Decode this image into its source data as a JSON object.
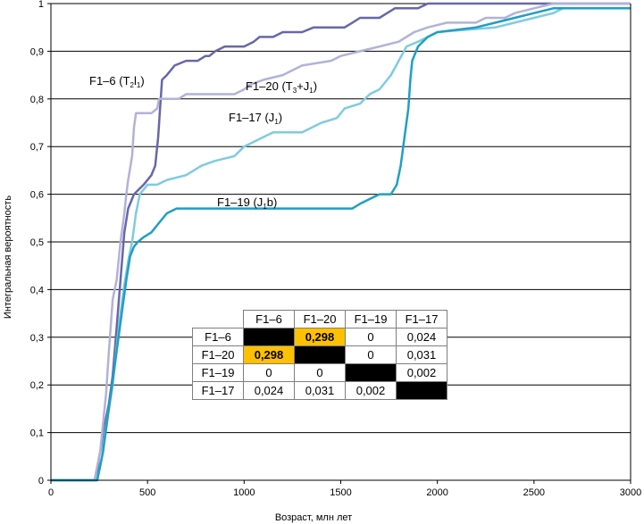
{
  "chart_data": {
    "type": "line",
    "xlabel": "Возраст, млн лет",
    "ylabel": "Интегральная вероятность",
    "xlim": [
      0,
      3000
    ],
    "ylim": [
      0,
      1
    ],
    "x_ticks": [
      "0",
      "500",
      "1000",
      "1500",
      "2000",
      "2500",
      "3000"
    ],
    "y_ticks": [
      "0",
      "0,1",
      "0,2",
      "0,3",
      "0,4",
      "0,5",
      "0,6",
      "0,7",
      "0,8",
      "0,9",
      "1"
    ],
    "grid": "horizontal",
    "series": [
      {
        "name": "F1–6 (T2l1)",
        "label": {
          "main": "F1–6 (T",
          "sub1": "2",
          "mid": "l",
          "sub2": "1",
          "end": ")"
        },
        "color": "#6767aa",
        "points": [
          [
            0,
            0
          ],
          [
            225,
            0
          ],
          [
            240,
            0.02
          ],
          [
            250,
            0.05
          ],
          [
            265,
            0.08
          ],
          [
            280,
            0.12
          ],
          [
            300,
            0.16
          ],
          [
            320,
            0.22
          ],
          [
            340,
            0.32
          ],
          [
            360,
            0.42
          ],
          [
            380,
            0.52
          ],
          [
            400,
            0.57
          ],
          [
            430,
            0.6
          ],
          [
            480,
            0.62
          ],
          [
            520,
            0.64
          ],
          [
            540,
            0.66
          ],
          [
            555,
            0.72
          ],
          [
            565,
            0.78
          ],
          [
            575,
            0.84
          ],
          [
            600,
            0.85
          ],
          [
            640,
            0.87
          ],
          [
            700,
            0.88
          ],
          [
            760,
            0.88
          ],
          [
            800,
            0.89
          ],
          [
            820,
            0.89
          ],
          [
            850,
            0.9
          ],
          [
            900,
            0.91
          ],
          [
            1000,
            0.91
          ],
          [
            1050,
            0.92
          ],
          [
            1080,
            0.93
          ],
          [
            1150,
            0.93
          ],
          [
            1200,
            0.94
          ],
          [
            1300,
            0.94
          ],
          [
            1360,
            0.95
          ],
          [
            1520,
            0.95
          ],
          [
            1560,
            0.96
          ],
          [
            1600,
            0.97
          ],
          [
            1700,
            0.97
          ],
          [
            1740,
            0.98
          ],
          [
            1780,
            0.99
          ],
          [
            1900,
            0.99
          ],
          [
            1950,
            1.0
          ],
          [
            3000,
            1.0
          ]
        ]
      },
      {
        "name": "F1–20 (T3+J1)",
        "label": {
          "main": "F1–20 (T",
          "sub1": "3",
          "mid": "+J",
          "sub2": "1",
          "end": ")"
        },
        "color": "#b2b2d8",
        "points": [
          [
            0,
            0
          ],
          [
            225,
            0
          ],
          [
            240,
            0.03
          ],
          [
            255,
            0.06
          ],
          [
            265,
            0.1
          ],
          [
            285,
            0.18
          ],
          [
            300,
            0.27
          ],
          [
            320,
            0.38
          ],
          [
            340,
            0.42
          ],
          [
            360,
            0.5
          ],
          [
            380,
            0.56
          ],
          [
            390,
            0.6
          ],
          [
            400,
            0.63
          ],
          [
            420,
            0.68
          ],
          [
            430,
            0.74
          ],
          [
            440,
            0.77
          ],
          [
            520,
            0.77
          ],
          [
            550,
            0.78
          ],
          [
            560,
            0.8
          ],
          [
            600,
            0.8
          ],
          [
            660,
            0.8
          ],
          [
            700,
            0.81
          ],
          [
            760,
            0.81
          ],
          [
            800,
            0.81
          ],
          [
            950,
            0.81
          ],
          [
            1000,
            0.82
          ],
          [
            1030,
            0.83
          ],
          [
            1100,
            0.84
          ],
          [
            1200,
            0.85
          ],
          [
            1300,
            0.87
          ],
          [
            1450,
            0.88
          ],
          [
            1500,
            0.89
          ],
          [
            1600,
            0.9
          ],
          [
            1700,
            0.91
          ],
          [
            1800,
            0.92
          ],
          [
            1880,
            0.94
          ],
          [
            1950,
            0.95
          ],
          [
            2050,
            0.96
          ],
          [
            2200,
            0.96
          ],
          [
            2250,
            0.97
          ],
          [
            2350,
            0.97
          ],
          [
            2400,
            0.98
          ],
          [
            2500,
            0.99
          ],
          [
            2600,
            1.0
          ],
          [
            3000,
            1.0
          ]
        ]
      },
      {
        "name": "F1–17 (J1)",
        "label": {
          "main": "F1–17 (J",
          "sub1": "1",
          "mid": "",
          "sub2": "",
          "end": ")"
        },
        "color": "#7fcbe0",
        "points": [
          [
            0,
            0
          ],
          [
            235,
            0
          ],
          [
            250,
            0.02
          ],
          [
            265,
            0.05
          ],
          [
            280,
            0.1
          ],
          [
            300,
            0.15
          ],
          [
            320,
            0.2
          ],
          [
            340,
            0.28
          ],
          [
            360,
            0.35
          ],
          [
            380,
            0.41
          ],
          [
            400,
            0.46
          ],
          [
            420,
            0.5
          ],
          [
            440,
            0.56
          ],
          [
            460,
            0.6
          ],
          [
            500,
            0.62
          ],
          [
            550,
            0.62
          ],
          [
            600,
            0.63
          ],
          [
            700,
            0.64
          ],
          [
            780,
            0.66
          ],
          [
            850,
            0.67
          ],
          [
            950,
            0.68
          ],
          [
            1000,
            0.7
          ],
          [
            1100,
            0.72
          ],
          [
            1150,
            0.73
          ],
          [
            1300,
            0.73
          ],
          [
            1400,
            0.75
          ],
          [
            1480,
            0.76
          ],
          [
            1520,
            0.78
          ],
          [
            1600,
            0.79
          ],
          [
            1650,
            0.81
          ],
          [
            1700,
            0.82
          ],
          [
            1760,
            0.85
          ],
          [
            1800,
            0.88
          ],
          [
            1840,
            0.91
          ],
          [
            1900,
            0.92
          ],
          [
            2000,
            0.94
          ],
          [
            2300,
            0.95
          ],
          [
            2400,
            0.96
          ],
          [
            2500,
            0.97
          ],
          [
            2600,
            0.98
          ],
          [
            2650,
            0.99
          ],
          [
            3000,
            0.99
          ]
        ]
      },
      {
        "name": "F1–19 (J1b)",
        "label": {
          "main": "F1–19 (J",
          "sub1": "1",
          "mid": "b",
          "sub2": "",
          "end": ")"
        },
        "color": "#1f9ec7",
        "points": [
          [
            0,
            0
          ],
          [
            240,
            0
          ],
          [
            250,
            0.02
          ],
          [
            270,
            0.06
          ],
          [
            290,
            0.12
          ],
          [
            310,
            0.18
          ],
          [
            330,
            0.24
          ],
          [
            350,
            0.3
          ],
          [
            370,
            0.36
          ],
          [
            390,
            0.42
          ],
          [
            410,
            0.47
          ],
          [
            430,
            0.49
          ],
          [
            450,
            0.5
          ],
          [
            480,
            0.51
          ],
          [
            520,
            0.52
          ],
          [
            560,
            0.54
          ],
          [
            600,
            0.56
          ],
          [
            650,
            0.57
          ],
          [
            800,
            0.57
          ],
          [
            1200,
            0.57
          ],
          [
            1560,
            0.57
          ],
          [
            1600,
            0.58
          ],
          [
            1650,
            0.59
          ],
          [
            1700,
            0.6
          ],
          [
            1760,
            0.6
          ],
          [
            1790,
            0.62
          ],
          [
            1810,
            0.66
          ],
          [
            1830,
            0.72
          ],
          [
            1850,
            0.78
          ],
          [
            1860,
            0.84
          ],
          [
            1870,
            0.88
          ],
          [
            1900,
            0.91
          ],
          [
            1950,
            0.93
          ],
          [
            2000,
            0.94
          ],
          [
            2200,
            0.95
          ],
          [
            2300,
            0.96
          ],
          [
            2400,
            0.97
          ],
          [
            2500,
            0.98
          ],
          [
            2600,
            0.99
          ],
          [
            3000,
            0.99
          ]
        ]
      }
    ],
    "table": {
      "headers": [
        "",
        "F1–6",
        "F1–20",
        "F1–19",
        "F1–17"
      ],
      "rows": [
        [
          "F1–6",
          "",
          "0,298",
          "0",
          "0,024"
        ],
        [
          "F1–20",
          "0,298",
          "",
          "0",
          "0,031"
        ],
        [
          "F1–19",
          "0",
          "0",
          "",
          "0,002"
        ],
        [
          "F1–17",
          "0,024",
          "0,031",
          "0,002",
          ""
        ]
      ]
    }
  }
}
